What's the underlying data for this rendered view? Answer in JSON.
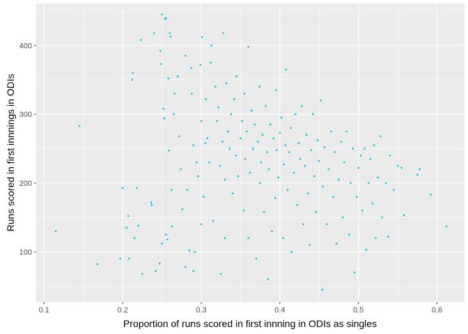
{
  "chart_data": {
    "type": "scatter",
    "title": "",
    "xlabel": "Proportion of runs scored in first innning in ODIs as singles",
    "ylabel": "Runs scored in first innnings in ODIs",
    "xlim": [
      0.09,
      0.635
    ],
    "ylim": [
      27,
      461
    ],
    "x_ticks": [
      0.1,
      0.2,
      0.3,
      0.4,
      0.5,
      0.6
    ],
    "x_tick_labels": [
      "0.1",
      "0.2",
      "0.3",
      "0.4",
      "0.5",
      "0.6"
    ],
    "y_ticks": [
      100,
      200,
      300,
      400
    ],
    "y_tick_labels": [
      "100",
      "200",
      "300",
      "400"
    ],
    "grid": true,
    "legend": "none",
    "point_color": "#00bfe6",
    "panel_color": "#ebebeb",
    "points": [
      [
        0.115,
        130
      ],
      [
        0.145,
        283
      ],
      [
        0.168,
        82
      ],
      [
        0.197,
        90
      ],
      [
        0.2,
        193
      ],
      [
        0.205,
        135
      ],
      [
        0.207,
        152
      ],
      [
        0.208,
        90
      ],
      [
        0.212,
        350
      ],
      [
        0.213,
        360
      ],
      [
        0.215,
        120
      ],
      [
        0.218,
        193
      ],
      [
        0.22,
        138
      ],
      [
        0.223,
        408
      ],
      [
        0.225,
        68
      ],
      [
        0.236,
        172
      ],
      [
        0.237,
        168
      ],
      [
        0.24,
        418
      ],
      [
        0.242,
        72
      ],
      [
        0.247,
        83
      ],
      [
        0.248,
        392
      ],
      [
        0.249,
        373
      ],
      [
        0.25,
        445
      ],
      [
        0.25,
        112
      ],
      [
        0.252,
        308
      ],
      [
        0.253,
        294
      ],
      [
        0.254,
        438
      ],
      [
        0.255,
        440
      ],
      [
        0.255,
        125
      ],
      [
        0.257,
        118
      ],
      [
        0.258,
        352
      ],
      [
        0.259,
        247
      ],
      [
        0.26,
        418
      ],
      [
        0.261,
        413
      ],
      [
        0.262,
        190
      ],
      [
        0.263,
        137
      ],
      [
        0.265,
        300
      ],
      [
        0.266,
        330
      ],
      [
        0.27,
        355
      ],
      [
        0.272,
        268
      ],
      [
        0.274,
        220
      ],
      [
        0.276,
        162
      ],
      [
        0.28,
        78
      ],
      [
        0.28,
        385
      ],
      [
        0.282,
        190
      ],
      [
        0.285,
        102
      ],
      [
        0.287,
        367
      ],
      [
        0.288,
        330
      ],
      [
        0.29,
        255
      ],
      [
        0.29,
        72
      ],
      [
        0.292,
        100
      ],
      [
        0.294,
        230
      ],
      [
        0.296,
        210
      ],
      [
        0.299,
        372
      ],
      [
        0.3,
        140
      ],
      [
        0.3,
        290
      ],
      [
        0.301,
        412
      ],
      [
        0.303,
        180
      ],
      [
        0.305,
        258
      ],
      [
        0.306,
        322
      ],
      [
        0.308,
        265
      ],
      [
        0.31,
        230
      ],
      [
        0.312,
        375
      ],
      [
        0.313,
        400
      ],
      [
        0.315,
        145
      ],
      [
        0.318,
        340
      ],
      [
        0.32,
        290
      ],
      [
        0.322,
        310
      ],
      [
        0.324,
        225
      ],
      [
        0.325,
        68
      ],
      [
        0.327,
        260
      ],
      [
        0.328,
        418
      ],
      [
        0.33,
        205
      ],
      [
        0.33,
        120
      ],
      [
        0.332,
        345
      ],
      [
        0.334,
        275
      ],
      [
        0.336,
        250
      ],
      [
        0.338,
        300
      ],
      [
        0.34,
        185
      ],
      [
        0.342,
        322
      ],
      [
        0.344,
        240
      ],
      [
        0.345,
        355
      ],
      [
        0.347,
        210
      ],
      [
        0.35,
        265
      ],
      [
        0.352,
        290
      ],
      [
        0.354,
        160
      ],
      [
        0.355,
        330
      ],
      [
        0.356,
        235
      ],
      [
        0.358,
        275
      ],
      [
        0.36,
        398
      ],
      [
        0.36,
        120
      ],
      [
        0.362,
        215
      ],
      [
        0.364,
        305
      ],
      [
        0.366,
        250
      ],
      [
        0.368,
        285
      ],
      [
        0.37,
        90
      ],
      [
        0.372,
        260
      ],
      [
        0.374,
        340
      ],
      [
        0.375,
        200
      ],
      [
        0.376,
        230
      ],
      [
        0.378,
        270
      ],
      [
        0.38,
        158
      ],
      [
        0.382,
        312
      ],
      [
        0.384,
        245
      ],
      [
        0.385,
        60
      ],
      [
        0.386,
        220
      ],
      [
        0.388,
        285
      ],
      [
        0.39,
        130
      ],
      [
        0.392,
        265
      ],
      [
        0.394,
        178
      ],
      [
        0.395,
        335
      ],
      [
        0.396,
        248
      ],
      [
        0.398,
        208
      ],
      [
        0.4,
        273
      ],
      [
        0.402,
        295
      ],
      [
        0.404,
        120
      ],
      [
        0.405,
        227
      ],
      [
        0.407,
        255
      ],
      [
        0.408,
        365
      ],
      [
        0.41,
        190
      ],
      [
        0.412,
        245
      ],
      [
        0.414,
        280
      ],
      [
        0.415,
        100
      ],
      [
        0.418,
        215
      ],
      [
        0.42,
        300
      ],
      [
        0.422,
        168
      ],
      [
        0.424,
        258
      ],
      [
        0.426,
        235
      ],
      [
        0.428,
        312
      ],
      [
        0.43,
        140
      ],
      [
        0.432,
        225
      ],
      [
        0.434,
        270
      ],
      [
        0.436,
        185
      ],
      [
        0.438,
        110
      ],
      [
        0.44,
        248
      ],
      [
        0.442,
        300
      ],
      [
        0.444,
        210
      ],
      [
        0.446,
        158
      ],
      [
        0.448,
        262
      ],
      [
        0.45,
        232
      ],
      [
        0.452,
        320
      ],
      [
        0.454,
        45
      ],
      [
        0.455,
        195
      ],
      [
        0.457,
        252
      ],
      [
        0.46,
        140
      ],
      [
        0.462,
        220
      ],
      [
        0.465,
        275
      ],
      [
        0.468,
        180
      ],
      [
        0.47,
        245
      ],
      [
        0.472,
        112
      ],
      [
        0.475,
        205
      ],
      [
        0.478,
        260
      ],
      [
        0.48,
        150
      ],
      [
        0.482,
        230
      ],
      [
        0.485,
        275
      ],
      [
        0.488,
        125
      ],
      [
        0.49,
        200
      ],
      [
        0.493,
        250
      ],
      [
        0.495,
        70
      ],
      [
        0.498,
        180
      ],
      [
        0.5,
        222
      ],
      [
        0.503,
        240
      ],
      [
        0.505,
        160
      ],
      [
        0.508,
        250
      ],
      [
        0.51,
        103
      ],
      [
        0.513,
        200
      ],
      [
        0.515,
        235
      ],
      [
        0.518,
        170
      ],
      [
        0.52,
        255
      ],
      [
        0.522,
        120
      ],
      [
        0.525,
        208
      ],
      [
        0.528,
        268
      ],
      [
        0.53,
        150
      ],
      [
        0.535,
        200
      ],
      [
        0.538,
        122
      ],
      [
        0.54,
        240
      ],
      [
        0.545,
        190
      ],
      [
        0.55,
        225
      ],
      [
        0.555,
        222
      ],
      [
        0.558,
        153
      ],
      [
        0.575,
        212
      ],
      [
        0.578,
        220
      ],
      [
        0.592,
        183
      ],
      [
        0.612,
        137
      ]
    ]
  }
}
